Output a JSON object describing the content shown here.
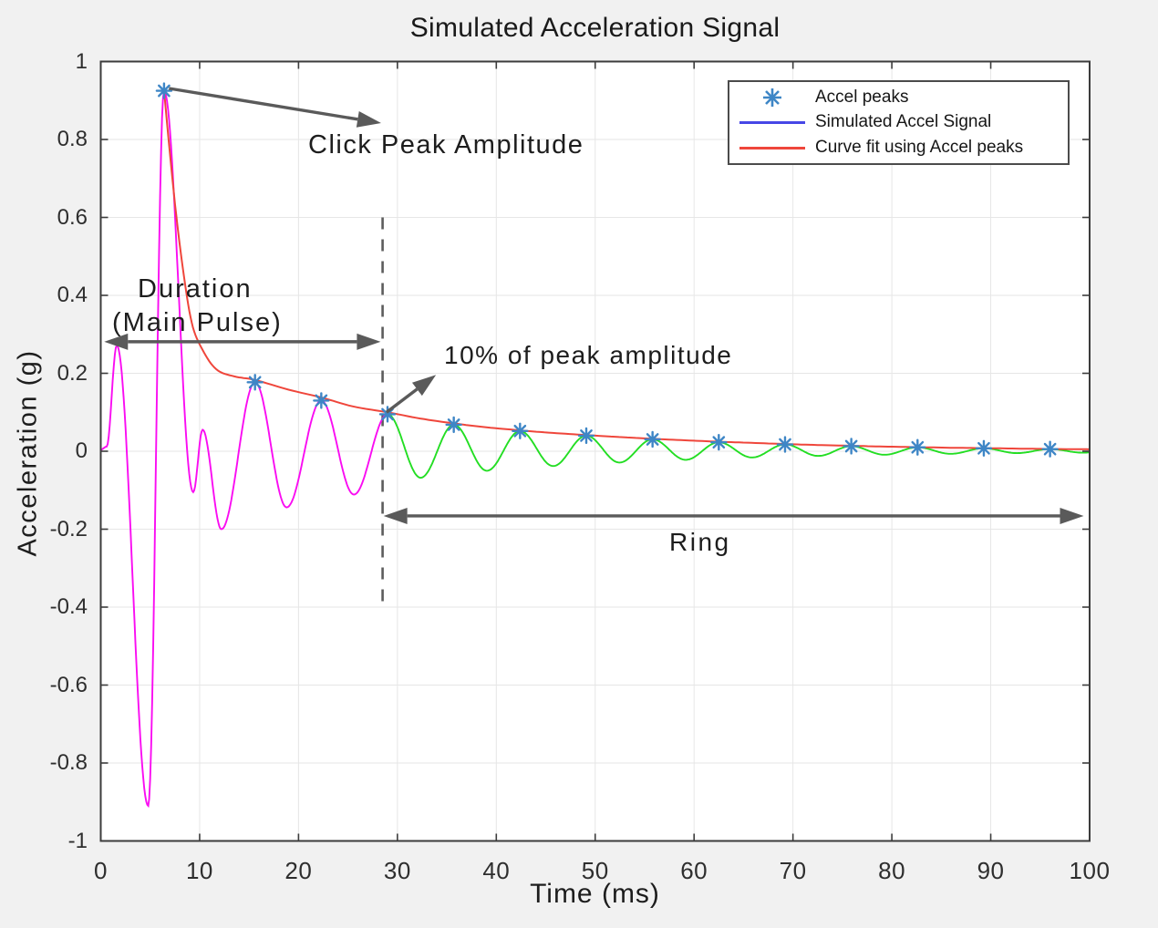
{
  "title": "Simulated Acceleration Signal",
  "axes": {
    "xlabel": "Time (ms)",
    "ylabel": "Acceleration (g)"
  },
  "legend": {
    "items": [
      {
        "label": "Accel peaks",
        "swatch": "asterisk-marker",
        "color": "#3e86c6"
      },
      {
        "label": "Simulated Accel Signal",
        "swatch": "line",
        "color": "#4747e6"
      },
      {
        "label": "Curve fit using Accel peaks",
        "swatch": "line",
        "color": "#ef463b"
      }
    ]
  },
  "annotations": {
    "click_peak": "Click Peak Amplitude",
    "duration_line1": "Duration",
    "duration_line2": "(Main Pulse)",
    "ten_percent": "10% of peak amplitude",
    "ring": "Ring"
  },
  "colors": {
    "background": "#f1f1f1",
    "plot_bg": "#ffffff",
    "grid": "#e6e6e6",
    "axis": "#3c3c3c",
    "annotation": "#5a5a5a",
    "text": "#1d1d1d",
    "main_pulse_signal": "#fa0cf2",
    "ring_signal": "#23de23",
    "curve_fit": "#ef463b",
    "peak_marker": "#3e86c6",
    "threshold": "#5c5c5c"
  },
  "chart_data": {
    "type": "line",
    "title": "Simulated Acceleration Signal",
    "xlabel": "Time (ms)",
    "ylabel": "Acceleration (g)",
    "xlim": [
      0,
      100
    ],
    "ylim": [
      -1,
      1
    ],
    "grid": true,
    "legend_position": "top-right",
    "x_ticks": [
      0,
      10,
      20,
      30,
      40,
      50,
      60,
      70,
      80,
      90,
      100
    ],
    "y_ticks": [
      {
        "v": 1,
        "label": "1"
      },
      {
        "v": 0.8,
        "label": "0.8"
      },
      {
        "v": 0.6,
        "label": "0.6"
      },
      {
        "v": 0.4,
        "label": "0.4"
      },
      {
        "v": 0.2,
        "label": "0.2"
      },
      {
        "v": 0,
        "label": "0"
      },
      {
        "v": -0.2,
        "label": "-0.2"
      },
      {
        "v": -0.4,
        "label": "-0.4"
      },
      {
        "v": -0.6,
        "label": "-0.6"
      },
      {
        "v": -0.8,
        "label": "-0.8"
      },
      {
        "v": -1,
        "label": "-1"
      }
    ],
    "series": [
      {
        "name": "Simulated Accel Signal (main pulse segment, magenta)",
        "style": "extrema-cosine",
        "color": "#fa0cf2",
        "points": [
          [
            0,
            0.004
          ],
          [
            0.6,
            0.012
          ],
          [
            1.62,
            0.272
          ],
          [
            4.8,
            -0.91
          ],
          [
            6.4,
            0.925
          ],
          [
            9.35,
            -0.105
          ],
          [
            10.3,
            0.055
          ],
          [
            12.2,
            -0.2
          ],
          [
            15.6,
            0.177
          ],
          [
            18.8,
            -0.144
          ],
          [
            22.3,
            0.13
          ],
          [
            25.6,
            -0.111
          ],
          [
            29,
            0.095
          ]
        ]
      },
      {
        "name": "Simulated Accel Signal (ring segment, green)",
        "style": "extrema-cosine",
        "color": "#23de23",
        "points": [
          [
            29,
            0.095
          ],
          [
            32.35,
            -0.068
          ],
          [
            35.7,
            0.068
          ],
          [
            39.05,
            -0.05
          ],
          [
            42.4,
            0.052
          ],
          [
            45.75,
            -0.038
          ],
          [
            49.1,
            0.04
          ],
          [
            52.45,
            -0.029
          ],
          [
            55.8,
            0.0305
          ],
          [
            59.15,
            -0.022
          ],
          [
            62.5,
            0.023
          ],
          [
            65.85,
            -0.016
          ],
          [
            69.2,
            0.0175
          ],
          [
            72.55,
            -0.012
          ],
          [
            75.9,
            0.013
          ],
          [
            79.25,
            -0.009
          ],
          [
            82.6,
            0.01
          ],
          [
            85.95,
            -0.0066
          ],
          [
            89.3,
            0.0075
          ],
          [
            92.65,
            -0.0048
          ],
          [
            96,
            0.0055
          ],
          [
            99.35,
            -0.0038
          ],
          [
            100,
            -0.003
          ]
        ]
      },
      {
        "name": "Curve fit using Accel peaks",
        "style": "smooth",
        "color": "#ef463b",
        "points": [
          [
            6.4,
            0.925
          ],
          [
            7.4,
            0.66
          ],
          [
            8.3,
            0.47
          ],
          [
            9.2,
            0.33
          ],
          [
            10.3,
            0.26
          ],
          [
            11.7,
            0.21
          ],
          [
            13.5,
            0.192
          ],
          [
            15.6,
            0.183
          ],
          [
            19,
            0.158
          ],
          [
            22.3,
            0.138
          ],
          [
            25.5,
            0.115
          ],
          [
            29,
            0.1
          ],
          [
            32.3,
            0.084
          ],
          [
            35.7,
            0.0715
          ],
          [
            39,
            0.0615
          ],
          [
            42.4,
            0.0535
          ],
          [
            45.7,
            0.047
          ],
          [
            49.1,
            0.0415
          ],
          [
            52.4,
            0.0365
          ],
          [
            55.8,
            0.032
          ],
          [
            59.1,
            0.028
          ],
          [
            62.5,
            0.0245
          ],
          [
            65.8,
            0.0215
          ],
          [
            69.2,
            0.0185
          ],
          [
            72.5,
            0.016
          ],
          [
            75.9,
            0.014
          ],
          [
            79.2,
            0.012
          ],
          [
            82.6,
            0.0105
          ],
          [
            85.9,
            0.009
          ],
          [
            89.3,
            0.008
          ],
          [
            92.6,
            0.0068
          ],
          [
            96,
            0.0058
          ],
          [
            100,
            0.005
          ]
        ]
      },
      {
        "name": "Accel peaks",
        "style": "markers",
        "marker": "asterisk",
        "color": "#3e86c6",
        "points": [
          [
            6.4,
            0.925
          ],
          [
            15.6,
            0.177
          ],
          [
            22.3,
            0.13
          ],
          [
            29,
            0.095
          ],
          [
            35.7,
            0.068
          ],
          [
            42.4,
            0.052
          ],
          [
            49.1,
            0.04
          ],
          [
            55.8,
            0.0305
          ],
          [
            62.5,
            0.023
          ],
          [
            69.2,
            0.0175
          ],
          [
            75.9,
            0.013
          ],
          [
            82.6,
            0.01
          ],
          [
            89.3,
            0.0075
          ],
          [
            96,
            0.0055
          ]
        ]
      }
    ],
    "threshold_line": {
      "x": 28.5,
      "y_top": 0.6,
      "y_bottom": -0.41,
      "style": "dashed",
      "color": "#5c5c5c"
    },
    "arrows": [
      {
        "id": "click-peak-arrow",
        "from": [
          6.9,
          0.931
        ],
        "to": [
          28.35,
          0.842
        ],
        "double": false
      },
      {
        "id": "duration-arrow",
        "from": [
          0.35,
          0.281
        ],
        "to": [
          28.3,
          0.281
        ],
        "double": true
      },
      {
        "id": "ten-percent-arrow",
        "from": [
          28.9,
          0.1
        ],
        "to": [
          33.9,
          0.196
        ],
        "double": false
      },
      {
        "id": "ring-arrow",
        "from": [
          28.6,
          -0.166
        ],
        "to": [
          99.4,
          -0.166
        ],
        "double": true
      }
    ]
  }
}
